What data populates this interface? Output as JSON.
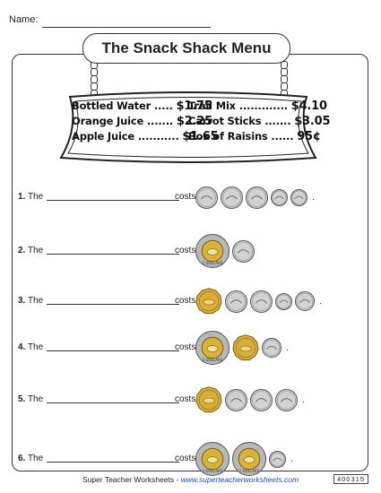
{
  "header": {
    "name_label": "Name:"
  },
  "title": "The Snack Shack Menu",
  "menu": [
    {
      "item": "Bottled Water",
      "dots": " ..... ",
      "price": "$1.75"
    },
    {
      "item": "Trail Mix",
      "dots": " ............. ",
      "price": "$4.10"
    },
    {
      "item": "Orange Juice",
      "dots": " ....... ",
      "price": "$2.25"
    },
    {
      "item": "Carrot Sticks",
      "dots": " ....... ",
      "price": "$3.05"
    },
    {
      "item": "Apple Juice",
      "dots": " ........... ",
      "price": "$1.65"
    },
    {
      "item": "Box of Raisins",
      "dots": " ...... ",
      "price": "95¢"
    }
  ],
  "questions": [
    {
      "num": "1.",
      "prefix": "The",
      "suffix": "costs",
      "coins": [
        "quarter",
        "quarter",
        "quarter",
        "dime",
        "dime"
      ],
      "period": "."
    },
    {
      "num": "2.",
      "prefix": "The",
      "suffix": "costs",
      "coins": [
        "toonie",
        "quarter"
      ],
      "period": ""
    },
    {
      "num": "3.",
      "prefix": "The",
      "suffix": "costs",
      "coins": [
        "loonie",
        "quarter",
        "quarter",
        "dime",
        "nickel"
      ],
      "period": "."
    },
    {
      "num": "4.",
      "prefix": "The",
      "suffix": "costs",
      "coins": [
        "toonie",
        "loonie",
        "nickel"
      ],
      "period": "."
    },
    {
      "num": "5.",
      "prefix": "The",
      "suffix": "costs",
      "coins": [
        "loonie",
        "quarter",
        "quarter",
        "quarter"
      ],
      "period": "."
    },
    {
      "num": "6.",
      "prefix": "The",
      "suffix": "costs",
      "coins": [
        "toonie",
        "toonie",
        "dime"
      ],
      "period": "."
    }
  ],
  "footer": {
    "brand": "Super Teacher Worksheets - ",
    "site": "www.superteacherworksheets.com",
    "code": "400315"
  }
}
